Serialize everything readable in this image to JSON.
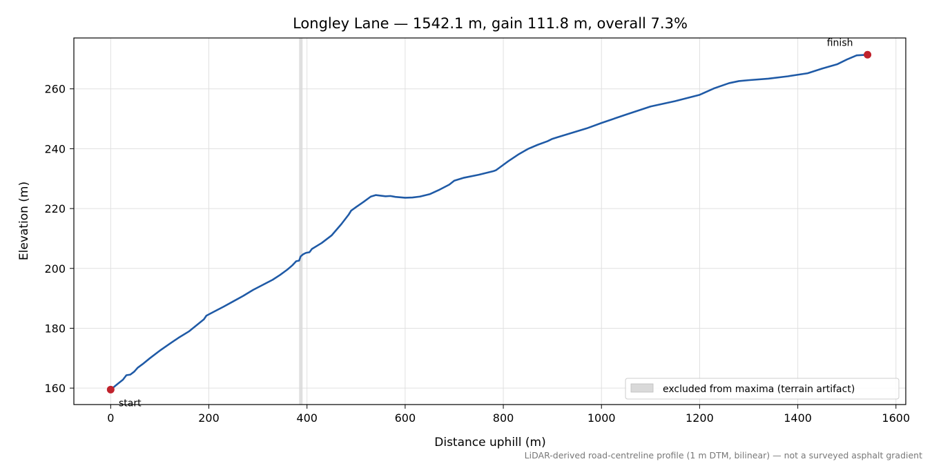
{
  "chart_data": {
    "type": "line",
    "title": "Longley Lane — 1542.1 m, gain 111.8 m, overall 7.3%",
    "xlabel": "Distance uphill (m)",
    "ylabel": "Elevation (m)",
    "xlim": [
      -75,
      1620
    ],
    "ylim": [
      154.5,
      277
    ],
    "xticks": [
      0,
      200,
      400,
      600,
      800,
      1000,
      1200,
      1400,
      1600
    ],
    "yticks": [
      160,
      180,
      200,
      220,
      240,
      260
    ],
    "grid": true,
    "series": [
      {
        "color": "#1f5aa6",
        "x": [
          0,
          15,
          25,
          32,
          40,
          48,
          55,
          65,
          80,
          100,
          120,
          140,
          160,
          175,
          190,
          195,
          210,
          230,
          250,
          270,
          290,
          310,
          330,
          345,
          360,
          370,
          378,
          384,
          387,
          392,
          398,
          405,
          410,
          430,
          450,
          470,
          485,
          490,
          500,
          515,
          530,
          540,
          550,
          560,
          570,
          580,
          600,
          615,
          630,
          650,
          670,
          690,
          700,
          720,
          750,
          780,
          785,
          790,
          810,
          830,
          850,
          870,
          890,
          900,
          910,
          940,
          970,
          1000,
          1050,
          1100,
          1150,
          1200,
          1230,
          1260,
          1280,
          1300,
          1340,
          1380,
          1420,
          1450,
          1480,
          1500,
          1520,
          1542.1
        ],
        "y": [
          159.5,
          161.5,
          162.8,
          164.3,
          164.5,
          165.5,
          166.8,
          168.0,
          170.0,
          172.5,
          174.8,
          177.0,
          179.0,
          181.0,
          183.0,
          184.2,
          185.5,
          187.2,
          189.0,
          190.8,
          192.8,
          194.5,
          196.2,
          197.8,
          199.6,
          201.0,
          202.4,
          202.6,
          204.0,
          204.7,
          205.2,
          205.4,
          206.5,
          208.5,
          211.0,
          214.8,
          218.0,
          219.3,
          220.5,
          222.2,
          224.0,
          224.5,
          224.3,
          224.1,
          224.2,
          223.9,
          223.6,
          223.7,
          224.0,
          224.8,
          226.3,
          228.0,
          229.3,
          230.3,
          231.3,
          232.5,
          232.8,
          233.4,
          235.8,
          238.0,
          239.9,
          241.3,
          242.5,
          243.3,
          243.8,
          245.3,
          246.8,
          248.6,
          251.4,
          254.1,
          255.9,
          258.0,
          260.2,
          261.9,
          262.6,
          262.9,
          263.4,
          264.2,
          265.2,
          266.8,
          268.2,
          269.8,
          271.2,
          271.4
        ]
      }
    ],
    "endpoints": [
      {
        "label": "start",
        "x": 0,
        "y": 159.5,
        "color": "#c0222c"
      },
      {
        "label": "finish",
        "x": 1542.1,
        "y": 271.4,
        "color": "#c0222c"
      }
    ],
    "excluded_band": {
      "x0": 384,
      "x1": 391,
      "color": "#d9d9d9"
    },
    "legend": {
      "entries": [
        "excluded from maxima (terrain artifact)"
      ],
      "placement": "lower-right"
    },
    "footnote": "LiDAR-derived road-centreline profile (1 m DTM, bilinear) — not a surveyed asphalt gradient"
  }
}
